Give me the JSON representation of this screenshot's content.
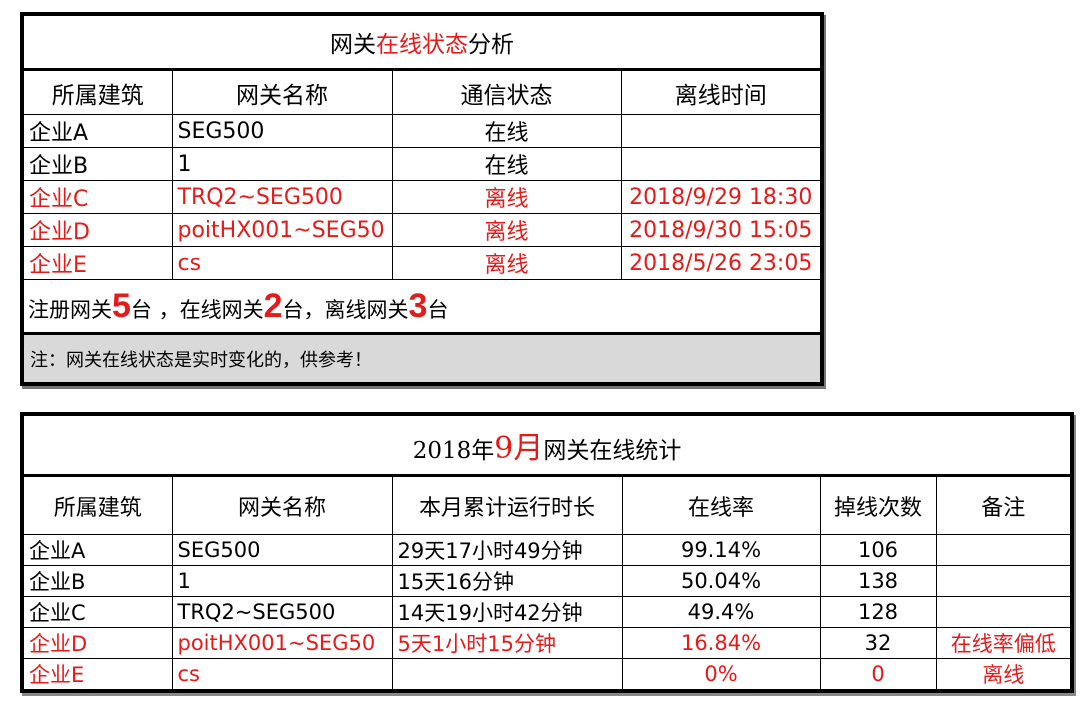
{
  "table1": {
    "title": {
      "prefix": "网关",
      "highlight": "在线状态",
      "suffix": "分析"
    },
    "headers": [
      "所属建筑",
      "网关名称",
      "通信状态",
      "离线时间"
    ],
    "rows": [
      {
        "building": "企业A",
        "gateway": "SEG500",
        "status": "在线",
        "offline_time": "",
        "alert": false
      },
      {
        "building": "企业B",
        "gateway": "1",
        "status": "在线",
        "offline_time": "",
        "alert": false
      },
      {
        "building": "企业C",
        "gateway": "TRQ2~SEG500",
        "status": "离线",
        "offline_time": "2018/9/29 18:30",
        "alert": true
      },
      {
        "building": "企业D",
        "gateway": "poitHX001~SEG50",
        "status": "离线",
        "offline_time": "2018/9/30 15:05",
        "alert": true
      },
      {
        "building": "企业E",
        "gateway": "cs",
        "status": "离线",
        "offline_time": "2018/5/26 23:05",
        "alert": true
      }
    ],
    "summary": {
      "registered_label": "注册网关",
      "registered_count": "5",
      "online_label": "台 ，在线网关",
      "online_count": "2",
      "offline_label": "台，离线网关",
      "offline_count": "3",
      "unit": "台"
    },
    "note": "注：网关在线状态是实时变化的，供参考！"
  },
  "table2": {
    "title": {
      "prefix": "2018年",
      "highlight": "9月",
      "suffix": "网关在线统计"
    },
    "headers": [
      "所属建筑",
      "网关名称",
      "本月累计运行时长",
      "在线率",
      "掉线次数",
      "备注"
    ],
    "rows": [
      {
        "building": "企业A",
        "gateway": "SEG500",
        "runtime": "29天17小时49分钟",
        "online_rate": "99.14%",
        "drops": "106",
        "remark": "",
        "alert": false
      },
      {
        "building": "企业B",
        "gateway": "1",
        "runtime": "15天16分钟",
        "online_rate": "50.04%",
        "drops": "138",
        "remark": "",
        "alert": false
      },
      {
        "building": "企业C",
        "gateway": "TRQ2~SEG500",
        "runtime": "14天19小时42分钟",
        "online_rate": "49.4%",
        "drops": "128",
        "remark": "",
        "alert": false
      },
      {
        "building": "企业D",
        "gateway": "poitHX001~SEG50",
        "runtime": "5天1小时15分钟",
        "online_rate": "16.84%",
        "drops": "32",
        "remark": "在线率偏低",
        "alert": true
      },
      {
        "building": "企业E",
        "gateway": "cs",
        "runtime": "",
        "online_rate": "0%",
        "drops": "0",
        "remark": "离线",
        "alert": true
      }
    ]
  },
  "colors": {
    "alert": "#e31b1b",
    "note_bg": "#d9d9d9"
  }
}
